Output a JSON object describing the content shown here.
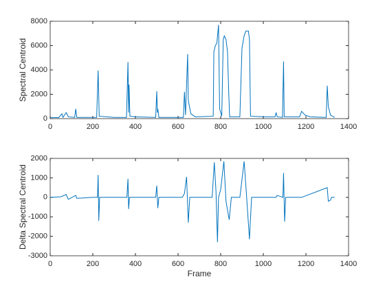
{
  "chart_data": [
    {
      "type": "line",
      "ylabel": "Spectral Centroid",
      "color": "#0072bd",
      "x": [
        0,
        40,
        55,
        60,
        75,
        85,
        115,
        120,
        125,
        218,
        225,
        230,
        300,
        358,
        365,
        368,
        370,
        374,
        400,
        495,
        500,
        503,
        505,
        510,
        625,
        630,
        635,
        645,
        648,
        660,
        680,
        765,
        768,
        775,
        782,
        790,
        795,
        805,
        812,
        817,
        825,
        832,
        838,
        842,
        890,
        900,
        910,
        918,
        930,
        935,
        940,
        1000,
        1055,
        1060,
        1065,
        1090,
        1095,
        1098,
        1170,
        1180,
        1195,
        1220,
        1295,
        1300,
        1305,
        1315,
        1335
      ],
      "values": [
        100,
        80,
        400,
        100,
        500,
        150,
        100,
        800,
        100,
        100,
        3950,
        200,
        100,
        100,
        4650,
        500,
        2800,
        200,
        150,
        100,
        2250,
        500,
        800,
        100,
        100,
        2200,
        300,
        5300,
        1500,
        400,
        150,
        200,
        5500,
        6000,
        6200,
        7700,
        800,
        200,
        6500,
        6800,
        6500,
        5500,
        2000,
        150,
        150,
        5800,
        6800,
        7200,
        7200,
        6500,
        200,
        150,
        150,
        500,
        150,
        100,
        4700,
        150,
        150,
        600,
        300,
        150,
        100,
        2700,
        1000,
        300,
        100
      ],
      "xlim": [
        0,
        1400
      ],
      "xticks": [
        0,
        200,
        400,
        600,
        800,
        1000,
        1200,
        1400
      ],
      "ylim": [
        0,
        8000
      ],
      "yticks": [
        0,
        2000,
        4000,
        6000,
        8000
      ]
    },
    {
      "type": "line",
      "ylabel": "Delta Spectral Centroid",
      "xlabel": "Frame",
      "color": "#0072bd",
      "x": [
        0,
        50,
        75,
        85,
        120,
        125,
        200,
        222,
        225,
        228,
        232,
        360,
        365,
        368,
        372,
        495,
        500,
        505,
        510,
        620,
        630,
        640,
        648,
        655,
        760,
        770,
        778,
        785,
        790,
        800,
        815,
        825,
        840,
        850,
        890,
        910,
        920,
        935,
        945,
        1060,
        1065,
        1092,
        1095,
        1100,
        1105,
        1180,
        1300,
        1305,
        1315,
        1320,
        1335
      ],
      "values": [
        0,
        30,
        150,
        -100,
        100,
        -50,
        0,
        0,
        1150,
        -1200,
        0,
        0,
        950,
        -600,
        0,
        0,
        600,
        -550,
        0,
        0,
        200,
        1050,
        -1300,
        0,
        0,
        1800,
        300,
        -2300,
        0,
        400,
        1850,
        -200,
        -1150,
        0,
        0,
        1850,
        300,
        -2150,
        0,
        0,
        100,
        0,
        1250,
        -1250,
        0,
        0,
        500,
        -200,
        -150,
        0,
        0
      ],
      "xlim": [
        0,
        1400
      ],
      "xticks": [
        0,
        200,
        400,
        600,
        800,
        1000,
        1200,
        1400
      ],
      "ylim": [
        -3000,
        2000
      ],
      "yticks": [
        -3000,
        -2000,
        -1000,
        0,
        1000,
        2000
      ]
    }
  ]
}
